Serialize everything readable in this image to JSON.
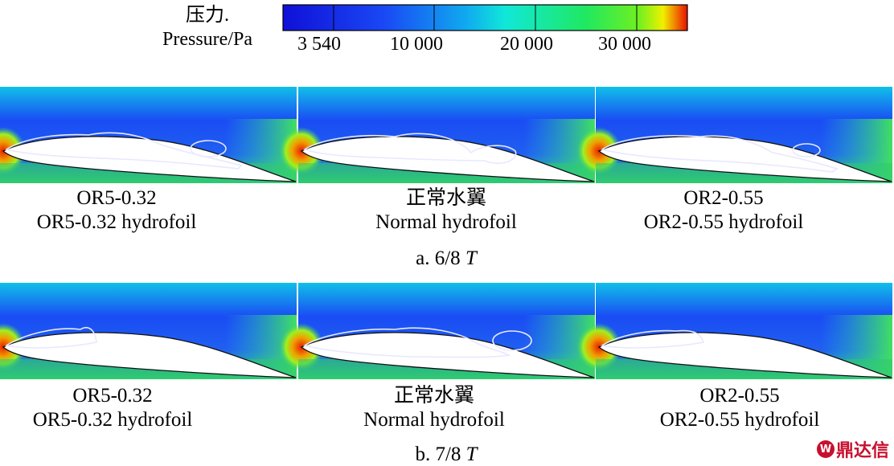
{
  "legend": {
    "title_cn": "压力.",
    "title_en": "Pressure/Pa",
    "ticks": [
      "3 540",
      "10 000",
      "20 000",
      "30 000"
    ],
    "colors": [
      "#1010d8",
      "#1a40f0",
      "#10a0f0",
      "#10e0d0",
      "#20e860",
      "#60f020",
      "#f0f000",
      "#f08000",
      "#e81000"
    ]
  },
  "rows": [
    {
      "label": "a. 6/8",
      "label_t": "T",
      "panels": [
        {
          "cn": "OR5-0.32",
          "en": "OR5-0.32 hydrofoil"
        },
        {
          "cn": "正常水翼",
          "en": "Normal hydrofoil"
        },
        {
          "cn": "OR2-0.55",
          "en": "OR2-0.55 hydrofoil"
        }
      ]
    },
    {
      "label": "b. 7/8",
      "label_t": "T",
      "panels": [
        {
          "cn": "OR5-0.32",
          "en": "OR5-0.32 hydrofoil"
        },
        {
          "cn": "正常水翼",
          "en": "Normal hydrofoil"
        },
        {
          "cn": "OR2-0.55",
          "en": "OR2-0.55 hydrofoil"
        }
      ]
    }
  ],
  "watermark": {
    "mark": "W",
    "text": "鼎达信"
  }
}
